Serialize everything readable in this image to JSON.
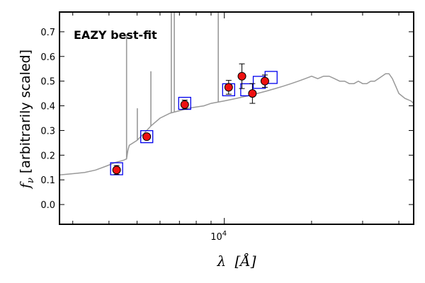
{
  "chart_data": {
    "type": "scatter",
    "title": "",
    "xlabel_symbol": "λ",
    "xlabel_unit": "[Å]",
    "ylabel_symbol": "f",
    "ylabel_subscript": "ν",
    "ylabel_text": "[arbitrarily scaled]",
    "xscale": "log",
    "xlim": [
      2700,
      45000
    ],
    "ylim": [
      -0.08,
      0.78
    ],
    "yticks": [
      0.0,
      0.1,
      0.2,
      0.3,
      0.4,
      0.5,
      0.6,
      0.7
    ],
    "ytick_labels": [
      "0.0",
      "0.1",
      "0.2",
      "0.3",
      "0.4",
      "0.5",
      "0.6",
      "0.7"
    ],
    "xtick_labels": [
      {
        "value": 10000,
        "base": "10",
        "exp": "4"
      }
    ],
    "annotation": {
      "text": "EAZY best-fit",
      "color": "#ff0000",
      "placement": "top-left"
    },
    "colors": {
      "sed": "#999999",
      "model": "#0000ee",
      "obs_fill": "#ee1111",
      "obs_edge": "#000000"
    },
    "sed": {
      "x": [
        2700,
        3000,
        3300,
        3600,
        3900,
        4200,
        4500,
        4600,
        4650,
        4700,
        5000,
        5300,
        5600,
        6000,
        6500,
        7000,
        7500,
        8000,
        8500,
        9000,
        10000,
        11000,
        12000,
        13000,
        14000,
        15000,
        16000,
        17000,
        18000,
        19000,
        20000,
        21000,
        22000,
        23000,
        24000,
        25000,
        26000,
        27000,
        28000,
        29000,
        30000,
        31000,
        32000,
        33000,
        34000,
        35000,
        36000,
        37000,
        38000,
        39000,
        40000,
        42000,
        44000,
        45000
      ],
      "y": [
        0.12,
        0.125,
        0.13,
        0.14,
        0.155,
        0.17,
        0.18,
        0.185,
        0.22,
        0.24,
        0.26,
        0.29,
        0.32,
        0.35,
        0.37,
        0.38,
        0.39,
        0.395,
        0.4,
        0.41,
        0.42,
        0.43,
        0.44,
        0.45,
        0.46,
        0.47,
        0.48,
        0.49,
        0.5,
        0.51,
        0.52,
        0.51,
        0.52,
        0.52,
        0.51,
        0.5,
        0.5,
        0.49,
        0.49,
        0.5,
        0.49,
        0.49,
        0.5,
        0.5,
        0.51,
        0.52,
        0.53,
        0.53,
        0.51,
        0.48,
        0.45,
        0.43,
        0.42,
        0.41
      ]
    },
    "emission_lines": [
      {
        "x": 4600,
        "y": 0.69
      },
      {
        "x": 5010,
        "y": 0.39
      },
      {
        "x": 5580,
        "y": 0.54
      },
      {
        "x": 6563,
        "y": 0.78
      },
      {
        "x": 6720,
        "y": 0.78
      },
      {
        "x": 9530,
        "y": 0.78
      }
    ],
    "model_photometry": {
      "x": [
        4250,
        5400,
        7300,
        10350,
        11950,
        13200,
        14500
      ],
      "y": [
        0.145,
        0.275,
        0.41,
        0.465,
        0.465,
        0.495,
        0.515
      ]
    },
    "observed_photometry": {
      "x": [
        4250,
        5400,
        7300,
        10350,
        11500,
        12500,
        13800
      ],
      "y": [
        0.14,
        0.275,
        0.405,
        0.475,
        0.52,
        0.45,
        0.5
      ],
      "yerr": [
        0.018,
        0.012,
        0.018,
        0.028,
        0.05,
        0.04,
        0.025
      ]
    }
  }
}
